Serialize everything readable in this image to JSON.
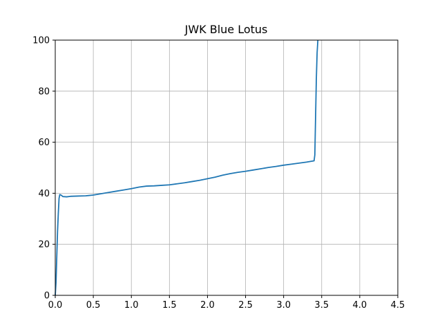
{
  "chart_data": {
    "type": "line",
    "title": "JWK Blue Lotus",
    "xlabel": "",
    "ylabel": "",
    "xlim": [
      0,
      4.5
    ],
    "ylim": [
      0,
      100
    ],
    "xticks": [
      0,
      0.5,
      1,
      1.5,
      2,
      2.5,
      3,
      3.5,
      4,
      4.5
    ],
    "xtick_labels": [
      "0.0",
      "0.5",
      "1.0",
      "1.5",
      "2.0",
      "2.5",
      "3.0",
      "3.5",
      "4.0",
      "4.5"
    ],
    "yticks": [
      0,
      20,
      40,
      60,
      80,
      100
    ],
    "ytick_labels": [
      "0",
      "20",
      "40",
      "60",
      "80",
      "100"
    ],
    "grid": true,
    "series_color": "#1f77b4",
    "series": [
      {
        "x": [
          0,
          0.01,
          0.02,
          0.03,
          0.04,
          0.05,
          0.06,
          0.08,
          0.1,
          0.15,
          0.2,
          0.3,
          0.4,
          0.5,
          0.6,
          0.7,
          0.8,
          0.9,
          1.0,
          1.1,
          1.2,
          1.3,
          1.4,
          1.5,
          1.6,
          1.7,
          1.8,
          1.9,
          2.0,
          2.1,
          2.2,
          2.3,
          2.4,
          2.5,
          2.6,
          2.7,
          2.8,
          2.9,
          3.0,
          3.1,
          3.2,
          3.3,
          3.4,
          3.41,
          3.42,
          3.43,
          3.44,
          3.45
        ],
        "y": [
          0,
          5,
          15,
          25,
          32,
          38,
          39.5,
          39.2,
          38.7,
          38.6,
          38.8,
          38.9,
          39.0,
          39.3,
          39.8,
          40.3,
          40.8,
          41.3,
          41.8,
          42.4,
          42.8,
          42.9,
          43.1,
          43.3,
          43.7,
          44.1,
          44.6,
          45.1,
          45.7,
          46.3,
          47.1,
          47.7,
          48.2,
          48.6,
          49.1,
          49.6,
          50.1,
          50.5,
          51.0,
          51.4,
          51.8,
          52.2,
          52.7,
          55,
          70,
          85,
          95,
          100
        ]
      }
    ]
  }
}
